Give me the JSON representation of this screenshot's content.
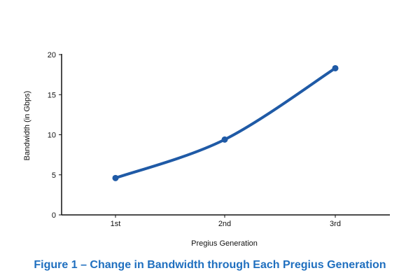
{
  "colors": {
    "series": "#1f5aa6",
    "axis": "#111111",
    "caption": "#1f6fbf"
  },
  "caption": "Figure 1 – Change in Bandwidth through Each Pregius Generation",
  "chart_data": {
    "type": "line",
    "categories": [
      "1st",
      "2nd",
      "3rd"
    ],
    "series": [
      {
        "values": [
          4.6,
          9.4,
          18.3
        ]
      }
    ],
    "xlabel": "Pregius Generation",
    "ylabel": "Bandwidth (in Gbps)",
    "ylim": [
      0,
      20
    ],
    "yticks": [
      0,
      5,
      10,
      15,
      20
    ],
    "grid": false,
    "smooth": true,
    "markers": true
  }
}
